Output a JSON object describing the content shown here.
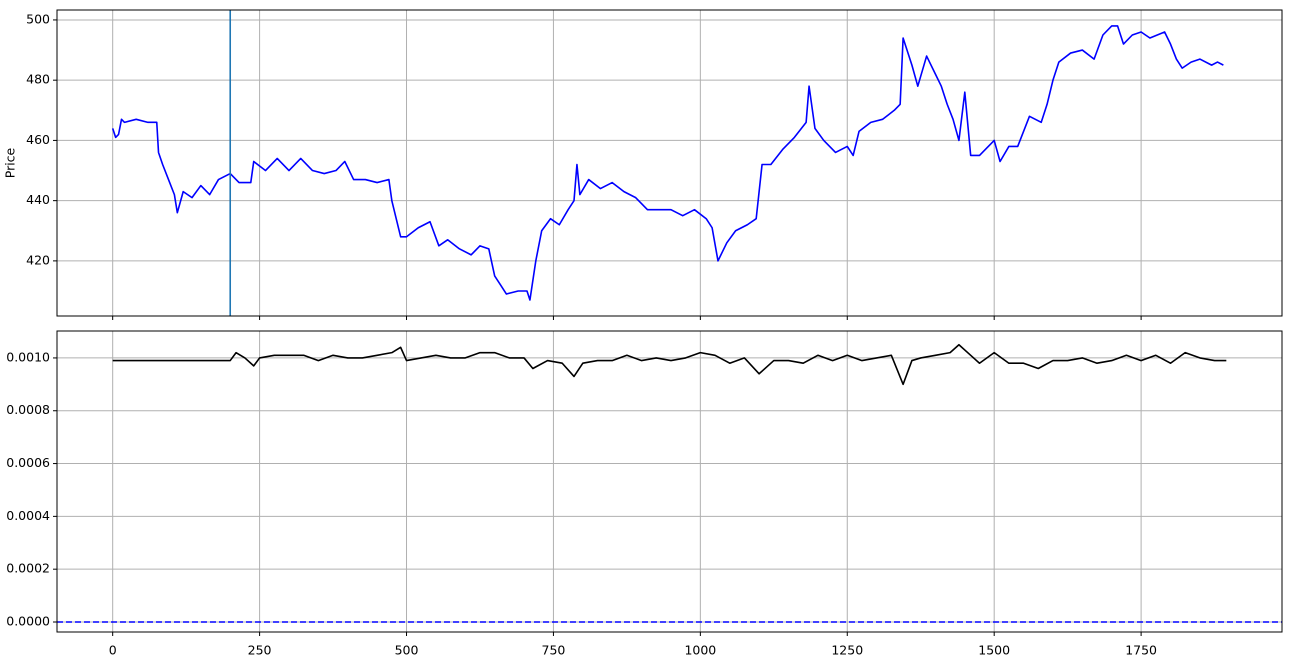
{
  "chart_data": [
    {
      "type": "line",
      "ylabel": "Price",
      "x": [
        0,
        5,
        10,
        15,
        20,
        40,
        60,
        75,
        78,
        85,
        95,
        105,
        110,
        120,
        135,
        150,
        165,
        180,
        200,
        215,
        235,
        240,
        260,
        280,
        300,
        320,
        340,
        360,
        380,
        395,
        410,
        430,
        450,
        470,
        475,
        490,
        500,
        520,
        540,
        555,
        570,
        590,
        610,
        625,
        640,
        650,
        660,
        670,
        690,
        705,
        710,
        720,
        730,
        745,
        760,
        775,
        785,
        790,
        795,
        810,
        830,
        850,
        870,
        890,
        910,
        930,
        950,
        970,
        990,
        1010,
        1020,
        1030,
        1045,
        1060,
        1080,
        1095,
        1105,
        1120,
        1140,
        1160,
        1180,
        1185,
        1195,
        1210,
        1230,
        1250,
        1260,
        1270,
        1290,
        1310,
        1330,
        1340,
        1345,
        1360,
        1370,
        1385,
        1400,
        1410,
        1420,
        1430,
        1440,
        1450,
        1460,
        1475,
        1490,
        1500,
        1510,
        1525,
        1540,
        1560,
        1580,
        1590,
        1600,
        1610,
        1630,
        1650,
        1670,
        1685,
        1700,
        1710,
        1720,
        1735,
        1750,
        1765,
        1790,
        1800,
        1810,
        1820,
        1835,
        1850,
        1870,
        1880,
        1890
      ],
      "values": [
        464,
        461,
        462,
        467,
        466,
        467,
        466,
        466,
        456,
        452,
        447,
        442,
        436,
        443,
        441,
        445,
        442,
        447,
        449,
        446,
        446,
        453,
        450,
        454,
        450,
        454,
        450,
        449,
        450,
        453,
        447,
        447,
        446,
        447,
        440,
        428,
        428,
        431,
        433,
        425,
        427,
        424,
        422,
        425,
        424,
        415,
        412,
        409,
        410,
        410,
        407,
        420,
        430,
        434,
        432,
        437,
        440,
        452,
        442,
        447,
        444,
        446,
        443,
        441,
        437,
        437,
        437,
        435,
        437,
        434,
        431,
        420,
        426,
        430,
        432,
        434,
        452,
        452,
        457,
        461,
        466,
        478,
        464,
        460,
        456,
        458,
        455,
        463,
        466,
        467,
        470,
        472,
        494,
        485,
        478,
        488,
        482,
        478,
        472,
        467,
        460,
        476,
        455,
        455,
        458,
        460,
        453,
        458,
        458,
        468,
        466,
        472,
        480,
        486,
        489,
        490,
        487,
        495,
        498,
        498,
        492,
        495,
        496,
        494,
        496,
        492,
        487,
        484,
        486,
        487,
        485,
        486,
        485
      ],
      "color": "#0000ff",
      "vline": {
        "x": 200,
        "color": "#1f77b4"
      },
      "xlim": [
        -94.75,
        1989.75
      ],
      "xticks": [
        0,
        250,
        500,
        750,
        1000,
        1250,
        1500,
        1750
      ],
      "xtick_labels": false,
      "ylim": [
        401.7,
        503.3
      ],
      "yticks": [
        420,
        440,
        460,
        480,
        500
      ],
      "grid": true
    },
    {
      "type": "line",
      "x": [
        0,
        200,
        210,
        225,
        240,
        250,
        275,
        300,
        325,
        350,
        375,
        400,
        425,
        450,
        475,
        490,
        500,
        525,
        550,
        575,
        600,
        625,
        650,
        675,
        700,
        715,
        740,
        765,
        785,
        800,
        825,
        850,
        875,
        900,
        925,
        950,
        975,
        1000,
        1025,
        1050,
        1075,
        1100,
        1125,
        1150,
        1175,
        1200,
        1225,
        1250,
        1275,
        1300,
        1325,
        1345,
        1360,
        1375,
        1400,
        1425,
        1440,
        1460,
        1475,
        1500,
        1525,
        1550,
        1575,
        1600,
        1625,
        1650,
        1675,
        1700,
        1725,
        1750,
        1775,
        1800,
        1825,
        1850,
        1875,
        1895
      ],
      "values": [
        0.00099,
        0.00099,
        0.00102,
        0.001,
        0.00097,
        0.001,
        0.00101,
        0.00101,
        0.00101,
        0.00099,
        0.00101,
        0.001,
        0.001,
        0.00101,
        0.00102,
        0.00104,
        0.00099,
        0.001,
        0.00101,
        0.001,
        0.001,
        0.00102,
        0.00102,
        0.001,
        0.001,
        0.00096,
        0.00099,
        0.00098,
        0.00093,
        0.00098,
        0.00099,
        0.00099,
        0.00101,
        0.00099,
        0.001,
        0.00099,
        0.001,
        0.00102,
        0.00101,
        0.00098,
        0.001,
        0.00094,
        0.00099,
        0.00099,
        0.00098,
        0.00101,
        0.00099,
        0.00101,
        0.00099,
        0.001,
        0.00101,
        0.0009,
        0.00099,
        0.001,
        0.00101,
        0.00102,
        0.00105,
        0.00101,
        0.00098,
        0.00102,
        0.00098,
        0.00098,
        0.00096,
        0.00099,
        0.00099,
        0.001,
        0.00098,
        0.00099,
        0.00101,
        0.00099,
        0.00101,
        0.00098,
        0.00102,
        0.001,
        0.00099,
        0.00099
      ],
      "color": "#000000",
      "hline": {
        "y": 0,
        "color": "#0000ff",
        "style": "dashed"
      },
      "xlim": [
        -94.75,
        1989.75
      ],
      "xticks": [
        0,
        250,
        500,
        750,
        1000,
        1250,
        1500,
        1750
      ],
      "xtick_labels": true,
      "ylim": [
        -3.79e-05,
        0.001102
      ],
      "yticks": [
        {
          "value": 0,
          "label": "0.0000"
        },
        {
          "value": 0.0002,
          "label": "0.0002"
        },
        {
          "value": 0.0004,
          "label": "0.0004"
        },
        {
          "value": 0.0006,
          "label": "0.0006"
        },
        {
          "value": 0.0008,
          "label": "0.0008"
        },
        {
          "value": 0.001,
          "label": "0.0010"
        }
      ],
      "grid": true
    }
  ]
}
